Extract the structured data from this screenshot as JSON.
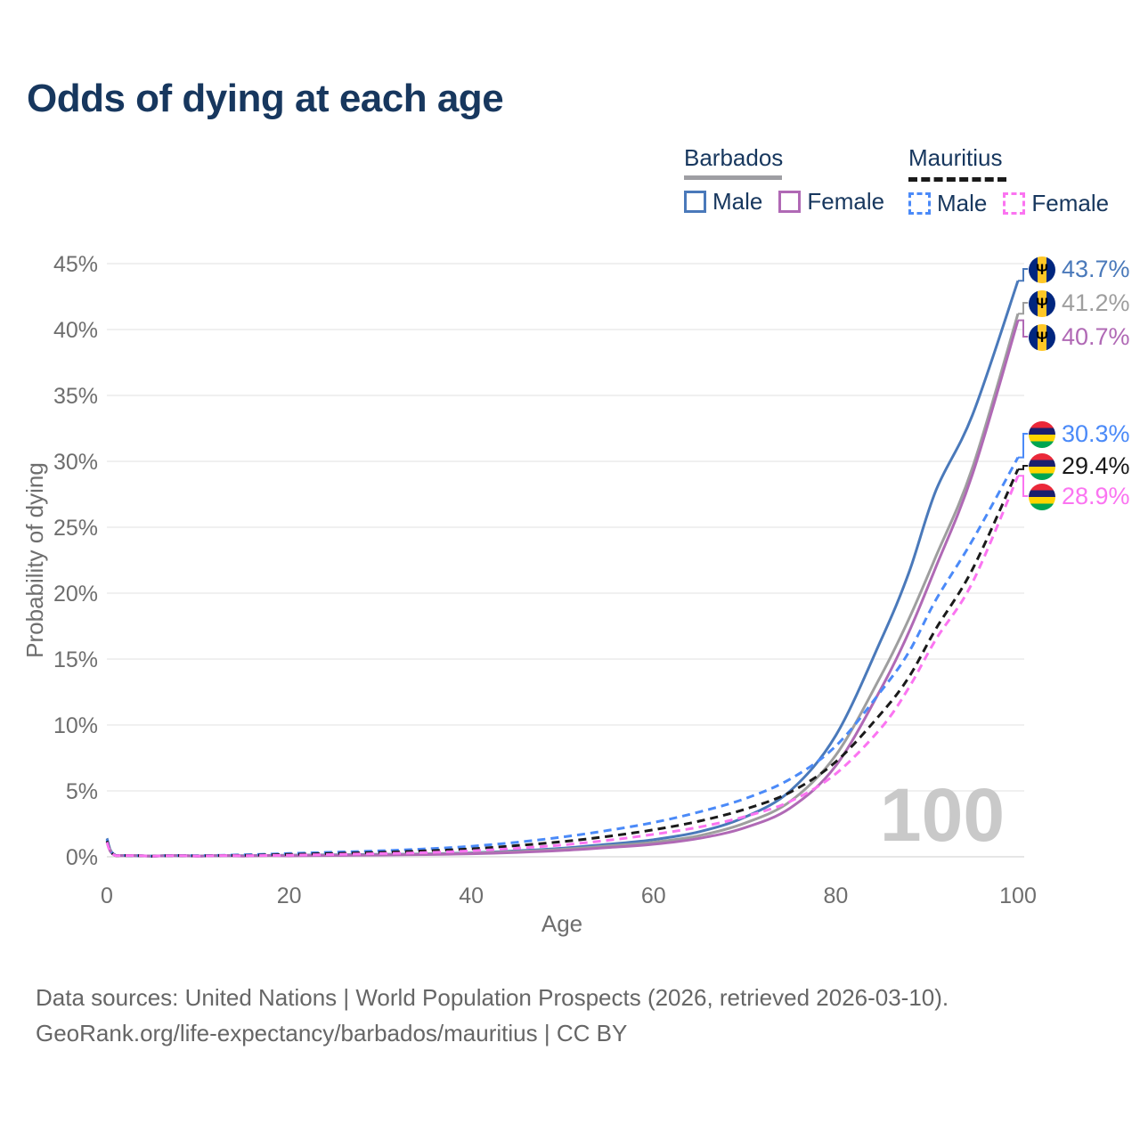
{
  "title": "Odds of dying at each age",
  "legend": {
    "barbados": {
      "title": "Barbados",
      "male_label": "Male",
      "female_label": "Female",
      "underline_color": "#9e9ea3",
      "male_color": "#4a79ba",
      "female_color": "#b069b5"
    },
    "mauritius": {
      "title": "Mauritius",
      "male_label": "Male",
      "female_label": "Female",
      "underline_color": "#1a1a1a",
      "male_color": "#4b8af8",
      "female_color": "#fb74f1"
    }
  },
  "chart_data": {
    "type": "line",
    "title": "Odds of dying at each age",
    "xlabel": "Age",
    "ylabel": "Probability of dying",
    "xlim": [
      0,
      100
    ],
    "ylim": [
      0,
      45
    ],
    "x_ticks": [
      0,
      20,
      40,
      60,
      80,
      100
    ],
    "y_ticks": [
      0,
      5,
      10,
      15,
      20,
      25,
      30,
      35,
      40,
      45
    ],
    "y_tick_suffix": "%",
    "grid": "horizontal",
    "legend_position": "top-right",
    "watermark": "100",
    "ages": [
      0,
      1,
      5,
      10,
      15,
      20,
      25,
      30,
      35,
      40,
      45,
      50,
      55,
      60,
      65,
      70,
      75,
      80,
      85,
      88,
      91,
      95,
      100
    ],
    "series": [
      {
        "name": "Barbados Male",
        "country": "Barbados",
        "sex": "male",
        "color": "#4a79ba",
        "dash": false,
        "flag": "barbados",
        "end_label": "43.7%",
        "values": [
          1.4,
          0.1,
          0.05,
          0.05,
          0.08,
          0.12,
          0.15,
          0.18,
          0.22,
          0.3,
          0.45,
          0.65,
          0.95,
          1.3,
          1.9,
          3.0,
          5.0,
          9.2,
          16.5,
          21.5,
          27.8,
          33.5,
          43.7
        ]
      },
      {
        "name": "Barbados (both sexes)",
        "country": "Barbados",
        "sex": "both",
        "color": "#9e9e9e",
        "dash": false,
        "flag": "barbados",
        "end_label": "41.2%",
        "values": [
          1.25,
          0.09,
          0.04,
          0.05,
          0.07,
          0.1,
          0.13,
          0.16,
          0.2,
          0.27,
          0.4,
          0.57,
          0.82,
          1.1,
          1.6,
          2.55,
          4.2,
          7.7,
          13.8,
          18.0,
          22.8,
          29.5,
          41.2
        ]
      },
      {
        "name": "Barbados Female",
        "country": "Barbados",
        "sex": "female",
        "color": "#b069b5",
        "dash": false,
        "flag": "barbados",
        "end_label": "40.7%",
        "values": [
          1.1,
          0.08,
          0.04,
          0.04,
          0.05,
          0.07,
          0.1,
          0.13,
          0.17,
          0.23,
          0.33,
          0.48,
          0.7,
          0.95,
          1.4,
          2.2,
          3.7,
          6.9,
          12.8,
          17.0,
          22.0,
          29.0,
          40.7
        ]
      },
      {
        "name": "Mauritius Male",
        "country": "Mauritius",
        "sex": "male",
        "color": "#4b8af8",
        "dash": true,
        "flag": "mauritius",
        "end_label": "30.3%",
        "values": [
          1.3,
          0.1,
          0.05,
          0.08,
          0.15,
          0.25,
          0.35,
          0.45,
          0.6,
          0.8,
          1.1,
          1.5,
          2.0,
          2.6,
          3.4,
          4.4,
          5.9,
          8.4,
          12.6,
          15.5,
          19.5,
          24.0,
          30.3
        ]
      },
      {
        "name": "Mauritius (both sexes)",
        "country": "Mauritius",
        "sex": "both",
        "color": "#1a1a1a",
        "dash": true,
        "flag": "mauritius",
        "end_label": "29.4%",
        "values": [
          1.2,
          0.09,
          0.04,
          0.06,
          0.11,
          0.18,
          0.26,
          0.34,
          0.45,
          0.6,
          0.85,
          1.15,
          1.55,
          2.05,
          2.7,
          3.6,
          4.9,
          7.2,
          10.9,
          13.6,
          17.3,
          21.8,
          29.4
        ]
      },
      {
        "name": "Mauritius Female",
        "country": "Mauritius",
        "sex": "female",
        "color": "#fb74f1",
        "dash": true,
        "flag": "mauritius",
        "end_label": "28.9%",
        "values": [
          1.1,
          0.08,
          0.04,
          0.05,
          0.08,
          0.12,
          0.18,
          0.24,
          0.32,
          0.45,
          0.65,
          0.9,
          1.25,
          1.7,
          2.25,
          3.05,
          4.2,
          6.3,
          9.8,
          12.8,
          16.5,
          20.8,
          28.9
        ]
      }
    ]
  },
  "flags": {
    "barbados": {
      "blue": "#00267F",
      "yellow": "#FFC726",
      "trident": "#000000",
      "trident_glyph": "Ψ"
    },
    "mauritius": {
      "red": "#EA2839",
      "blue": "#1A206D",
      "yellow": "#FFD500",
      "green": "#00A551"
    }
  },
  "footer": {
    "line1": "Data sources: United Nations | World Population Prospects (2026, retrieved 2026-03-10).",
    "line2": "GeoRank.org/life-expectancy/barbados/mauritius | CC BY"
  }
}
